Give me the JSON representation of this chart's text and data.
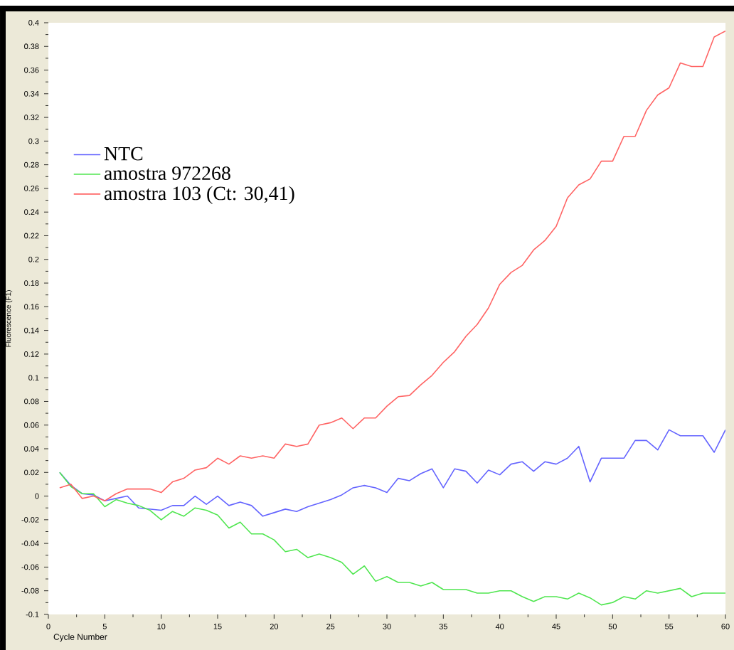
{
  "chart_data": {
    "type": "line",
    "xlabel": "Cycle Number",
    "ylabel": "Fluorescence (F1)",
    "x": [
      1,
      2,
      3,
      4,
      5,
      6,
      7,
      8,
      9,
      10,
      11,
      12,
      13,
      14,
      15,
      16,
      17,
      18,
      19,
      20,
      21,
      22,
      23,
      24,
      25,
      26,
      27,
      28,
      29,
      30,
      31,
      32,
      33,
      34,
      35,
      36,
      37,
      38,
      39,
      40,
      41,
      42,
      43,
      44,
      45,
      46,
      47,
      48,
      49,
      50,
      51,
      52,
      53,
      54,
      55,
      56,
      57,
      58,
      59,
      60
    ],
    "series": [
      {
        "name": "NTC",
        "color": "#6464ff",
        "values": [
          0.02,
          0.009,
          0.002,
          0.001,
          -0.004,
          -0.002,
          0,
          -0.01,
          -0.011,
          -0.012,
          -0.008,
          -0.008,
          0,
          -0.007,
          0,
          -0.008,
          -0.005,
          -0.008,
          -0.017,
          -0.014,
          -0.011,
          -0.013,
          -0.009,
          -0.006,
          -0.003,
          0.001,
          0.007,
          0.009,
          0.007,
          0.003,
          0.015,
          0.013,
          0.019,
          0.023,
          0.007,
          0.023,
          0.021,
          0.011,
          0.022,
          0.018,
          0.027,
          0.029,
          0.021,
          0.029,
          0.027,
          0.032,
          0.042,
          0.012,
          0.032,
          0.032,
          0.032,
          0.047,
          0.047,
          0.039,
          0.056,
          0.051,
          0.051,
          0.051,
          0.037,
          0.056
        ]
      },
      {
        "name": "amostra 972268",
        "color": "#50e650",
        "values": [
          0.02,
          0.008,
          0.002,
          0.002,
          -0.009,
          -0.003,
          -0.006,
          -0.008,
          -0.012,
          -0.02,
          -0.013,
          -0.017,
          -0.01,
          -0.012,
          -0.016,
          -0.027,
          -0.022,
          -0.032,
          -0.032,
          -0.037,
          -0.047,
          -0.045,
          -0.052,
          -0.049,
          -0.052,
          -0.056,
          -0.066,
          -0.059,
          -0.072,
          -0.068,
          -0.073,
          -0.073,
          -0.076,
          -0.073,
          -0.079,
          -0.079,
          -0.079,
          -0.082,
          -0.082,
          -0.08,
          -0.08,
          -0.085,
          -0.089,
          -0.085,
          -0.085,
          -0.087,
          -0.082,
          -0.086,
          -0.092,
          -0.09,
          -0.085,
          -0.087,
          -0.08,
          -0.082,
          -0.08,
          -0.078,
          -0.085,
          -0.082,
          -0.082,
          -0.082
        ]
      },
      {
        "name": "amostra 103 (Ct: 30,41)",
        "color": "#ff6464",
        "values": [
          0.007,
          0.01,
          -0.002,
          0,
          -0.004,
          0.002,
          0.006,
          0.006,
          0.006,
          0.003,
          0.012,
          0.015,
          0.022,
          0.024,
          0.032,
          0.027,
          0.034,
          0.032,
          0.034,
          0.032,
          0.044,
          0.042,
          0.044,
          0.06,
          0.062,
          0.066,
          0.057,
          0.066,
          0.066,
          0.076,
          0.084,
          0.085,
          0.094,
          0.102,
          0.113,
          0.122,
          0.135,
          0.145,
          0.159,
          0.179,
          0.189,
          0.195,
          0.208,
          0.216,
          0.228,
          0.252,
          0.263,
          0.268,
          0.283,
          0.283,
          0.304,
          0.304,
          0.326,
          0.339,
          0.345,
          0.366,
          0.363,
          0.363,
          0.388,
          0.393
        ]
      }
    ],
    "xlim": [
      0,
      60
    ],
    "xticks": [
      0,
      5,
      10,
      15,
      20,
      25,
      30,
      35,
      40,
      45,
      50,
      55,
      60
    ],
    "ylim": [
      -0.1,
      0.4
    ],
    "yticks": [
      -0.1,
      -0.08,
      -0.06,
      -0.04,
      -0.02,
      0,
      0.02,
      0.04,
      0.06,
      0.08,
      0.1,
      0.12,
      0.14,
      0.16,
      0.18,
      0.2,
      0.22,
      0.24,
      0.26,
      0.28,
      0.3,
      0.32,
      0.34,
      0.36,
      0.38,
      0.4
    ],
    "grid": false,
    "legend": "top left"
  }
}
